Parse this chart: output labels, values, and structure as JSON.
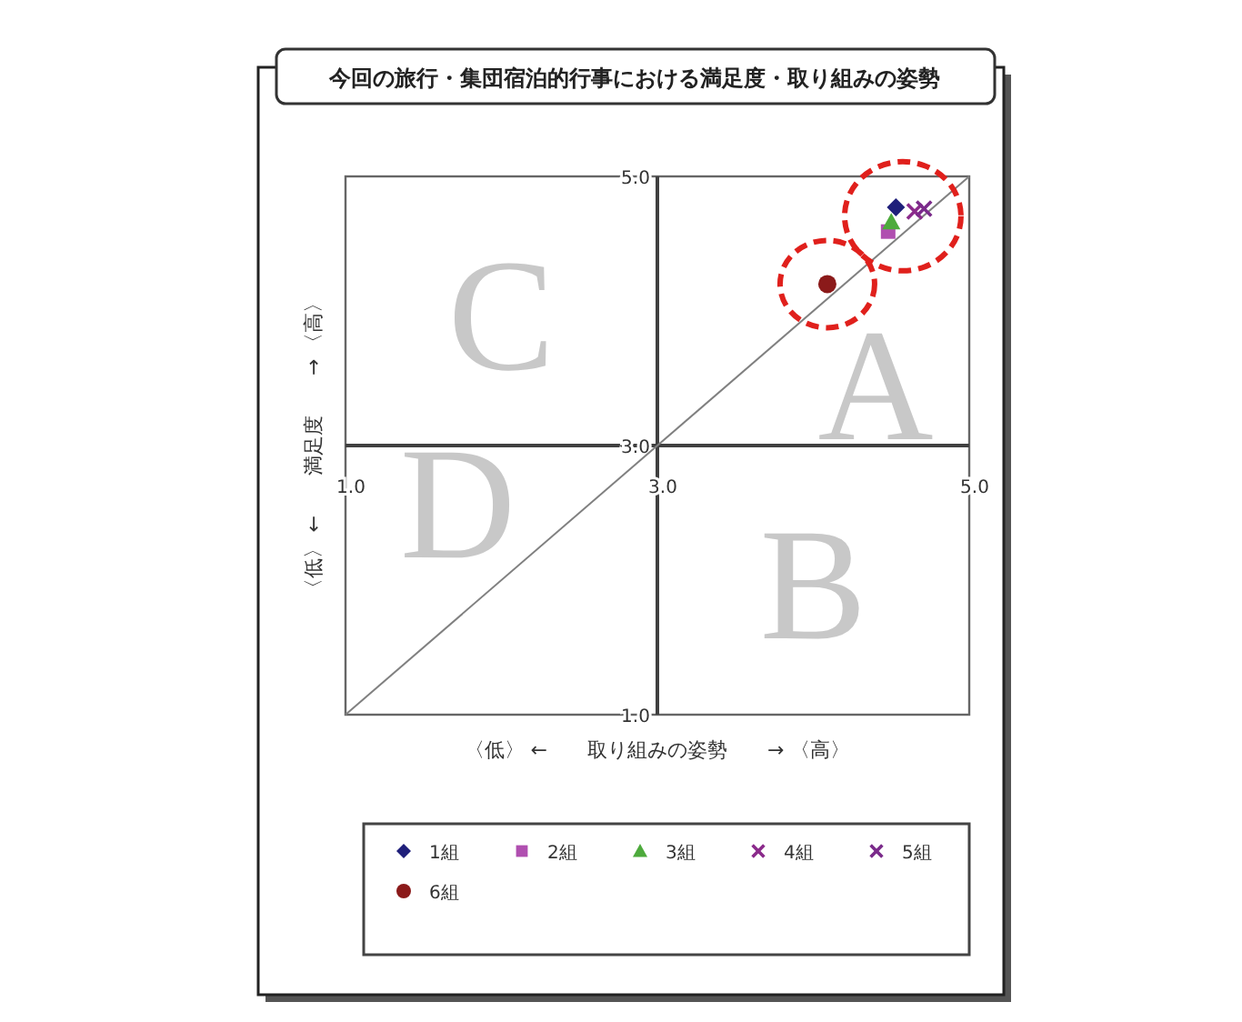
{
  "chart_data": {
    "type": "scatter",
    "title": "今回の旅行・集団宿泊的行事における満足度・取り組みの姿勢",
    "xlabel": "〈低〉 ←　　取り組みの姿勢　　→ 〈高〉",
    "ylabel": "〈低〉 ←　　満足度　　→ 〈高〉",
    "xlim": [
      1,
      5
    ],
    "ylim": [
      1,
      5
    ],
    "xticks": [
      {
        "value": 1,
        "label": "1.0"
      },
      {
        "value": 3,
        "label": "3.0"
      },
      {
        "value": 5,
        "label": "5.0"
      }
    ],
    "yticks": [
      {
        "value": 1,
        "label": "1.0"
      },
      {
        "value": 3,
        "label": "3.0"
      },
      {
        "value": 5,
        "label": "5.0"
      }
    ],
    "annotations": [
      "A",
      "B",
      "C",
      "D"
    ],
    "legend": "bottom",
    "series": [
      {
        "name": "1組",
        "color": "#1f1f7a",
        "marker": "diamond",
        "x": [
          4.53
        ],
        "values": [
          4.77
        ]
      },
      {
        "name": "2組",
        "color": "#b04fb0",
        "marker": "square",
        "x": [
          4.48
        ],
        "values": [
          4.59
        ]
      },
      {
        "name": "3組",
        "color": "#4daa3c",
        "marker": "triangle",
        "x": [
          4.5
        ],
        "values": [
          4.66
        ]
      },
      {
        "name": "4組",
        "color": "#8b2a8b",
        "marker": "cross",
        "x": [
          4.65
        ],
        "values": [
          4.74
        ]
      },
      {
        "name": "5組",
        "color": "#7a2a8a",
        "marker": "cross",
        "x": [
          4.71
        ],
        "values": [
          4.76
        ]
      },
      {
        "name": "6組",
        "color": "#8b1a1a",
        "marker": "circle",
        "x": [
          4.09
        ],
        "values": [
          4.2
        ]
      },
      {
        "type": "line",
        "color": "#808080",
        "marker": "none",
        "x": [
          1,
          5
        ],
        "values": [
          1,
          5
        ]
      }
    ]
  }
}
